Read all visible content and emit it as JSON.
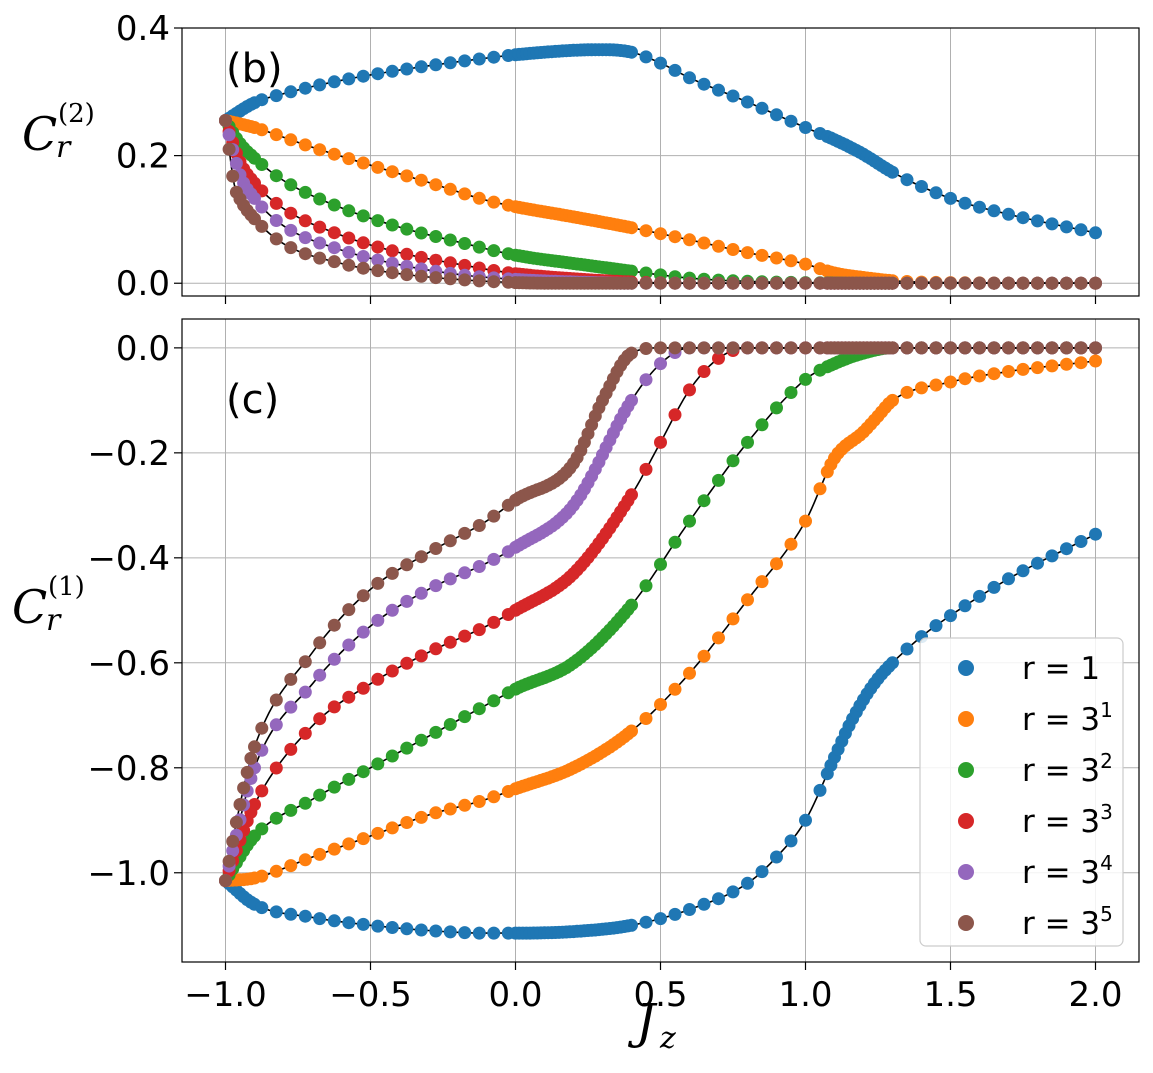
{
  "chart_data": [
    {
      "type": "scatter",
      "panel_label": "(b)",
      "ylabel": "C",
      "ylabel_sub": "r",
      "ylabel_sup": "(2)",
      "xlabel": "",
      "xlim": [
        -1.15,
        2.15
      ],
      "ylim": [
        -0.02,
        0.4
      ],
      "yticks": [
        0.0,
        0.2,
        0.4
      ],
      "ytick_labels": [
        "0.0",
        "0.2",
        "0.4"
      ],
      "xticks": [
        -1.0,
        -0.5,
        0.0,
        0.5,
        1.0,
        1.5,
        2.0
      ],
      "grid": true,
      "series": [
        {
          "name": "r = 1",
          "color": "#1f77b4",
          "x": [
            -1.0,
            -0.9,
            -0.8,
            -0.6,
            -0.4,
            -0.2,
            0.0,
            0.2,
            0.3,
            0.4,
            0.5,
            0.6,
            0.8,
            1.0,
            1.1,
            1.2,
            1.3,
            1.5,
            1.7,
            2.0
          ],
          "y": [
            0.255,
            0.283,
            0.297,
            0.318,
            0.334,
            0.347,
            0.358,
            0.365,
            0.366,
            0.362,
            0.345,
            0.322,
            0.284,
            0.244,
            0.225,
            0.202,
            0.174,
            0.133,
            0.108,
            0.079
          ]
        },
        {
          "name": "r = 3^1",
          "color": "#ff7f0e",
          "x": [
            -1.0,
            -0.9,
            -0.7,
            -0.5,
            -0.3,
            -0.1,
            0.0,
            0.2,
            0.4,
            0.6,
            0.8,
            1.0,
            1.1,
            1.2,
            1.3,
            1.5,
            2.0
          ],
          "y": [
            0.255,
            0.244,
            0.213,
            0.185,
            0.158,
            0.13,
            0.12,
            0.104,
            0.087,
            0.068,
            0.048,
            0.03,
            0.016,
            0.009,
            0.004,
            0.001,
            0.0
          ]
        },
        {
          "name": "r = 3^2",
          "color": "#2ca02c",
          "x": [
            -1.0,
            -0.95,
            -0.9,
            -0.8,
            -0.6,
            -0.4,
            -0.2,
            0.0,
            0.2,
            0.4,
            0.6,
            0.8,
            1.0,
            1.3,
            2.0
          ],
          "y": [
            0.255,
            0.219,
            0.196,
            0.161,
            0.118,
            0.088,
            0.065,
            0.044,
            0.031,
            0.019,
            0.008,
            0.003,
            0.001,
            0.0,
            0.0
          ]
        },
        {
          "name": "r = 3^3",
          "color": "#d62728",
          "x": [
            -1.0,
            -0.95,
            -0.9,
            -0.8,
            -0.6,
            -0.4,
            -0.2,
            0.0,
            0.2,
            0.4,
            0.6,
            1.0,
            2.0
          ],
          "y": [
            0.255,
            0.19,
            0.157,
            0.117,
            0.075,
            0.048,
            0.03,
            0.015,
            0.007,
            0.002,
            0.0,
            0.0,
            0.0
          ]
        },
        {
          "name": "r = 3^4",
          "color": "#9467bd",
          "x": [
            -1.0,
            -0.95,
            -0.9,
            -0.8,
            -0.6,
            -0.4,
            -0.2,
            0.0,
            0.2,
            0.4,
            1.0,
            2.0
          ],
          "y": [
            0.255,
            0.17,
            0.133,
            0.09,
            0.052,
            0.029,
            0.014,
            0.006,
            0.002,
            0.0,
            0.0,
            0.0
          ]
        },
        {
          "name": "r = 3^5",
          "color": "#8c564b",
          "x": [
            -1.0,
            -0.97,
            -0.95,
            -0.9,
            -0.8,
            -0.6,
            -0.4,
            -0.2,
            0.0,
            0.2,
            0.4,
            1.0,
            2.0
          ],
          "y": [
            0.255,
            0.155,
            0.132,
            0.101,
            0.062,
            0.031,
            0.015,
            0.006,
            0.001,
            0.0,
            0.0,
            0.0,
            0.0
          ]
        }
      ]
    },
    {
      "type": "scatter",
      "panel_label": "(c)",
      "ylabel": "C",
      "ylabel_sub": "r",
      "ylabel_sup": "(1)",
      "xlabel": "J",
      "xlabel_sub": "z",
      "xlim": [
        -1.15,
        2.15
      ],
      "ylim": [
        -1.17,
        0.055
      ],
      "yticks": [
        0.0,
        -0.2,
        -0.4,
        -0.6,
        -0.8,
        -1.0
      ],
      "ytick_labels": [
        "0.0",
        "−0.2",
        "−0.4",
        "−0.6",
        "−0.8",
        "−1.0"
      ],
      "xticks": [
        -1.0,
        -0.5,
        0.0,
        0.5,
        1.0,
        1.5,
        2.0
      ],
      "xtick_labels": [
        "−1.0",
        "−0.5",
        "0.0",
        "0.5",
        "1.0",
        "1.5",
        "2.0"
      ],
      "grid": true,
      "legend_position": "bottom-right",
      "series": [
        {
          "name": "r = 1",
          "legend_base": "r = 1",
          "legend_exp": "",
          "color": "#1f77b4",
          "x": [
            -1.0,
            -0.9,
            -0.7,
            -0.5,
            -0.3,
            -0.1,
            0.0,
            0.2,
            0.4,
            0.6,
            0.8,
            0.9,
            1.0,
            1.1,
            1.15,
            1.2,
            1.25,
            1.3,
            1.4,
            1.5,
            1.7,
            2.0
          ],
          "y": [
            -1.015,
            -1.06,
            -1.085,
            -1.1,
            -1.11,
            -1.115,
            -1.115,
            -1.112,
            -1.1,
            -1.07,
            -1.02,
            -0.97,
            -0.9,
            -0.78,
            -0.72,
            -0.67,
            -0.63,
            -0.6,
            -0.55,
            -0.51,
            -0.44,
            -0.355
          ]
        },
        {
          "name": "r = 3^1",
          "legend_base": "r = 3",
          "legend_exp": "1",
          "color": "#ff7f0e",
          "x": [
            -1.0,
            -0.9,
            -0.7,
            -0.5,
            -0.3,
            -0.1,
            0.0,
            0.2,
            0.4,
            0.6,
            0.8,
            1.0,
            1.1,
            1.2,
            1.25,
            1.3,
            1.5,
            1.7,
            2.0
          ],
          "y": [
            -1.015,
            -1.01,
            -0.97,
            -0.93,
            -0.89,
            -0.86,
            -0.84,
            -0.8,
            -0.73,
            -0.62,
            -0.48,
            -0.33,
            -0.21,
            -0.16,
            -0.13,
            -0.1,
            -0.065,
            -0.045,
            -0.025
          ]
        },
        {
          "name": "r = 3^2",
          "legend_base": "r = 3",
          "legend_exp": "2",
          "color": "#2ca02c",
          "x": [
            -1.0,
            -0.9,
            -0.7,
            -0.5,
            -0.3,
            -0.1,
            0.0,
            0.2,
            0.4,
            0.6,
            0.8,
            1.0,
            1.1,
            1.2,
            1.3,
            1.5,
            2.0
          ],
          "y": [
            -1.015,
            -0.93,
            -0.86,
            -0.8,
            -0.74,
            -0.68,
            -0.65,
            -0.6,
            -0.49,
            -0.33,
            -0.18,
            -0.06,
            -0.03,
            -0.01,
            0.0,
            0.0,
            0.0
          ]
        },
        {
          "name": "r = 3^3",
          "legend_base": "r = 3",
          "legend_exp": "3",
          "color": "#d62728",
          "x": [
            -1.0,
            -0.9,
            -0.7,
            -0.5,
            -0.3,
            -0.1,
            0.0,
            0.2,
            0.4,
            0.5,
            0.6,
            0.7,
            0.8,
            1.0,
            2.0
          ],
          "y": [
            -1.015,
            -0.87,
            -0.72,
            -0.64,
            -0.58,
            -0.53,
            -0.5,
            -0.43,
            -0.28,
            -0.18,
            -0.08,
            -0.02,
            0.0,
            0.0,
            0.0
          ]
        },
        {
          "name": "r = 3^4",
          "legend_base": "r = 3",
          "legend_exp": "4",
          "color": "#9467bd",
          "x": [
            -1.0,
            -0.9,
            -0.7,
            -0.5,
            -0.3,
            -0.1,
            0.0,
            0.2,
            0.4,
            0.5,
            0.6,
            1.0,
            2.0
          ],
          "y": [
            -1.015,
            -0.8,
            -0.64,
            -0.53,
            -0.46,
            -0.41,
            -0.38,
            -0.3,
            -0.1,
            -0.03,
            0.0,
            0.0,
            0.0
          ]
        },
        {
          "name": "r = 3^5",
          "legend_base": "r = 3",
          "legend_exp": "5",
          "color": "#8c564b",
          "x": [
            -1.0,
            -0.95,
            -0.9,
            -0.7,
            -0.5,
            -0.3,
            -0.1,
            0.0,
            0.2,
            0.3,
            0.4,
            0.5,
            1.0,
            2.0
          ],
          "y": [
            -1.015,
            -0.87,
            -0.76,
            -0.58,
            -0.46,
            -0.39,
            -0.33,
            -0.29,
            -0.22,
            -0.1,
            -0.01,
            0.0,
            0.0,
            0.0
          ]
        }
      ]
    }
  ]
}
